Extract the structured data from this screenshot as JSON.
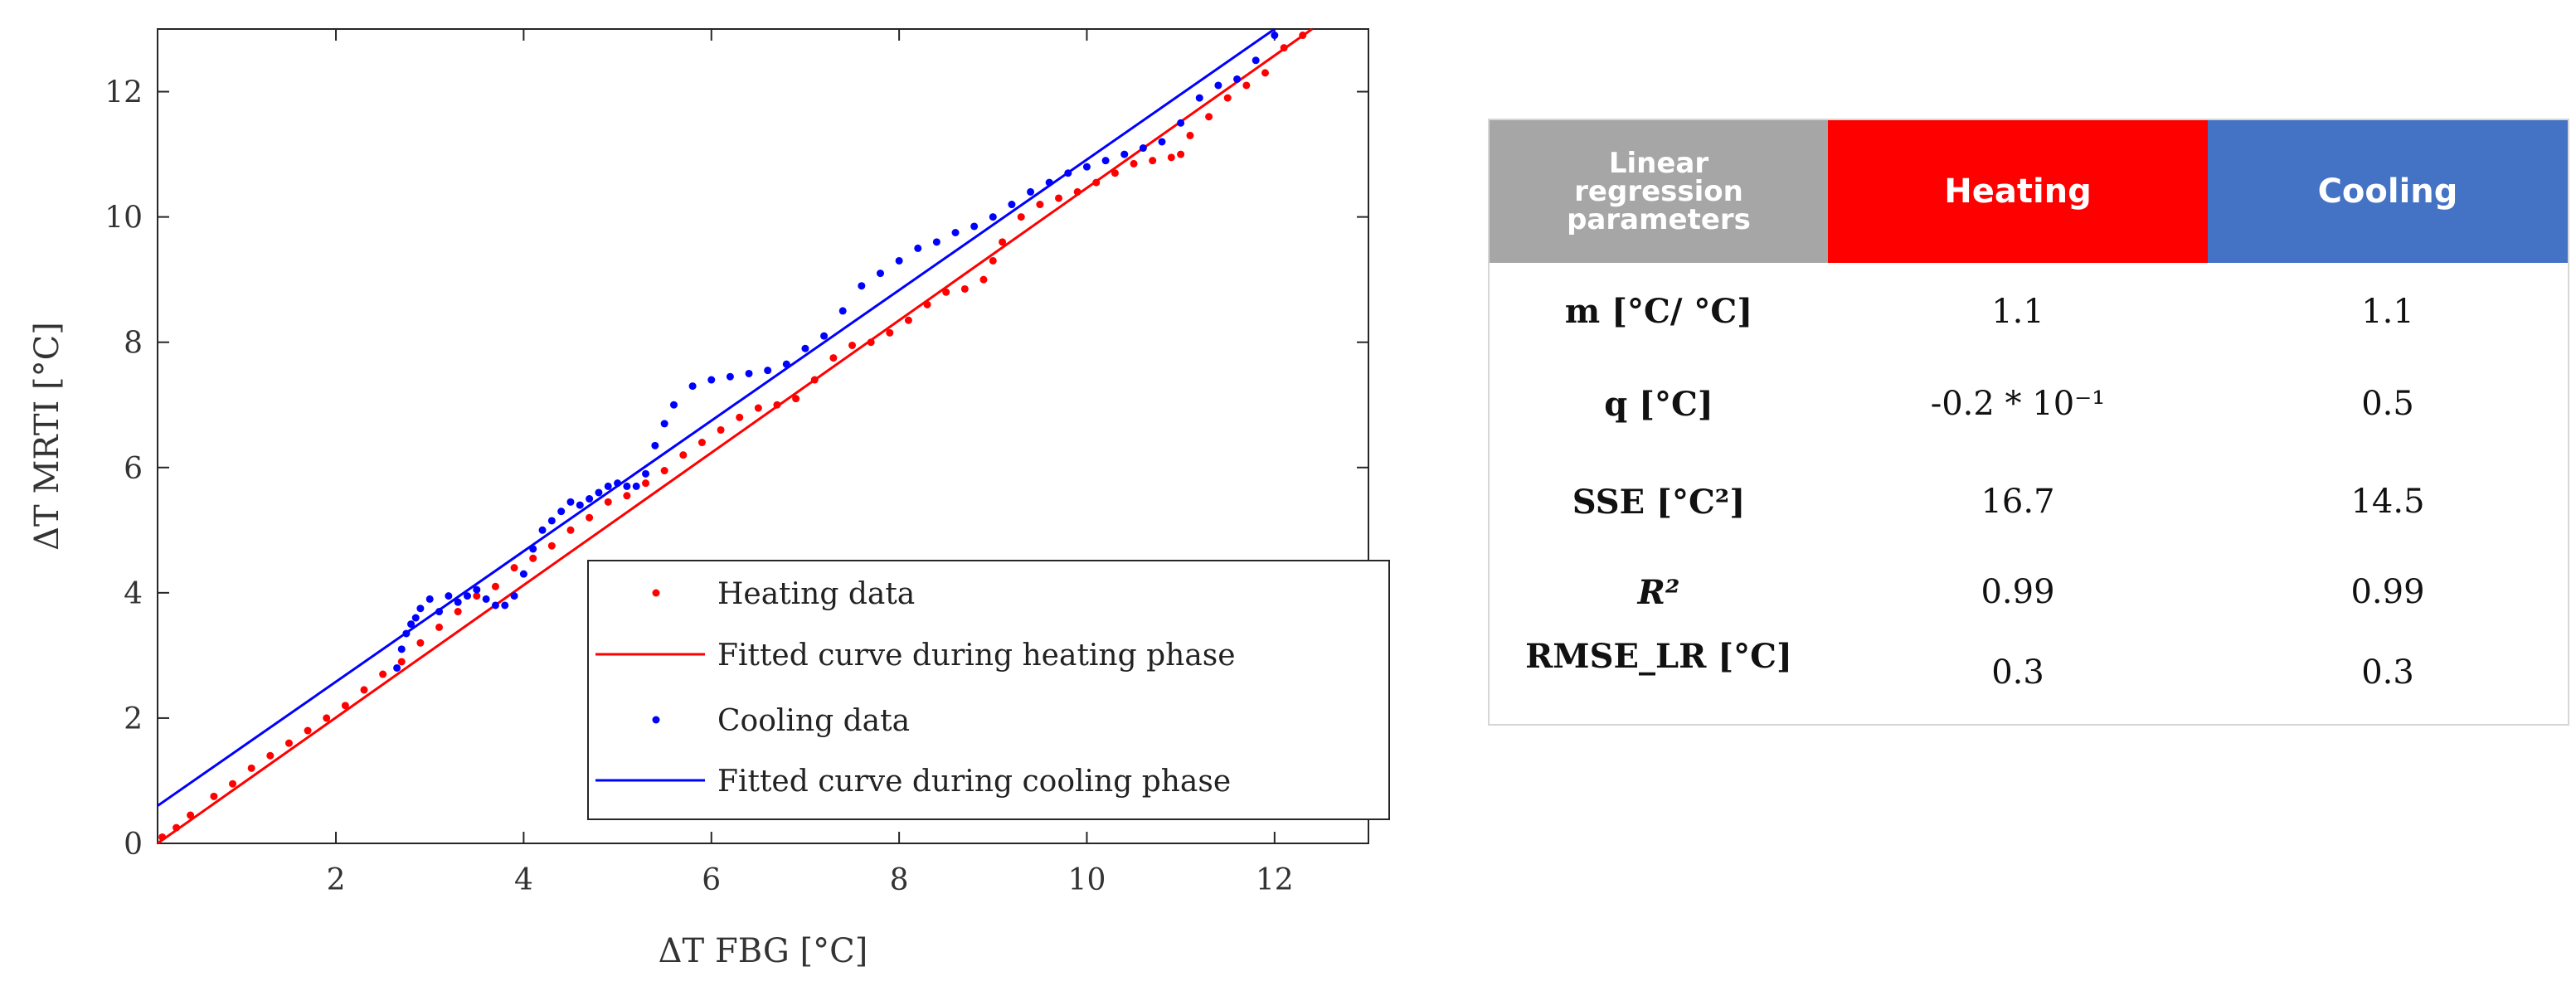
{
  "chart_data": {
    "type": "scatter",
    "xlabel": "ΔT FBG [°C]",
    "ylabel": "ΔT MRTI [°C]",
    "xlim": [
      0.1,
      13
    ],
    "ylim": [
      0,
      13
    ],
    "xticks": [
      2,
      4,
      6,
      8,
      10,
      12
    ],
    "yticks": [
      0,
      2,
      4,
      6,
      8,
      10,
      12
    ],
    "legend_position": "bottom-right",
    "legend": [
      "Heating data",
      "Fitted curve during heating phase",
      "Cooling data",
      "Fitted curve during cooling phase"
    ],
    "series": [
      {
        "name": "Heating data",
        "kind": "points",
        "color": "#ff0000",
        "x": [
          0.15,
          0.3,
          0.45,
          0.7,
          0.9,
          1.1,
          1.3,
          1.5,
          1.7,
          1.9,
          2.1,
          2.3,
          2.5,
          2.7,
          2.9,
          3.1,
          3.3,
          3.5,
          3.7,
          3.9,
          4.1,
          4.3,
          4.5,
          4.7,
          4.9,
          5.1,
          5.3,
          5.5,
          5.7,
          5.9,
          6.1,
          6.3,
          6.5,
          6.7,
          6.9,
          7.1,
          7.3,
          7.5,
          7.7,
          7.9,
          8.1,
          8.3,
          8.5,
          8.7,
          8.9,
          9.0,
          9.1,
          9.3,
          9.5,
          9.7,
          9.9,
          10.1,
          10.3,
          10.5,
          10.7,
          10.9,
          11.0,
          11.1,
          11.3,
          11.5,
          11.7,
          11.9,
          12.1,
          12.3
        ],
        "y": [
          0.1,
          0.25,
          0.45,
          0.75,
          0.95,
          1.2,
          1.4,
          1.6,
          1.8,
          2.0,
          2.2,
          2.45,
          2.7,
          2.9,
          3.2,
          3.45,
          3.7,
          3.95,
          4.1,
          4.4,
          4.55,
          4.75,
          5.0,
          5.2,
          5.45,
          5.55,
          5.75,
          5.95,
          6.2,
          6.4,
          6.6,
          6.8,
          6.95,
          7.0,
          7.1,
          7.4,
          7.75,
          7.95,
          8.0,
          8.15,
          8.35,
          8.6,
          8.8,
          8.85,
          9.0,
          9.3,
          9.6,
          10.0,
          10.2,
          10.3,
          10.4,
          10.55,
          10.7,
          10.85,
          10.9,
          10.95,
          11.0,
          11.3,
          11.6,
          11.9,
          12.1,
          12.3,
          12.7,
          12.9
        ]
      },
      {
        "name": "Cooling data",
        "kind": "points",
        "color": "#0000ff",
        "x": [
          2.65,
          2.7,
          2.75,
          2.8,
          2.85,
          2.9,
          3.0,
          3.1,
          3.2,
          3.3,
          3.4,
          3.5,
          3.6,
          3.7,
          3.8,
          3.9,
          4.0,
          4.1,
          4.2,
          4.3,
          4.4,
          4.5,
          4.6,
          4.7,
          4.8,
          4.9,
          5.0,
          5.1,
          5.2,
          5.3,
          5.4,
          5.5,
          5.6,
          5.8,
          6.0,
          6.2,
          6.4,
          6.6,
          6.8,
          7.0,
          7.2,
          7.4,
          7.6,
          7.8,
          8.0,
          8.2,
          8.4,
          8.6,
          8.8,
          9.0,
          9.2,
          9.4,
          9.6,
          9.8,
          10.0,
          10.2,
          10.4,
          10.6,
          10.8,
          11.0,
          11.2,
          11.4,
          11.6,
          11.8,
          12.0
        ],
        "y": [
          2.8,
          3.1,
          3.35,
          3.5,
          3.6,
          3.75,
          3.9,
          3.7,
          3.95,
          3.85,
          3.95,
          4.05,
          3.9,
          3.8,
          3.8,
          3.95,
          4.3,
          4.7,
          5.0,
          5.15,
          5.3,
          5.45,
          5.4,
          5.5,
          5.6,
          5.7,
          5.75,
          5.7,
          5.7,
          5.9,
          6.35,
          6.7,
          7.0,
          7.3,
          7.4,
          7.45,
          7.5,
          7.55,
          7.65,
          7.9,
          8.1,
          8.5,
          8.9,
          9.1,
          9.3,
          9.5,
          9.6,
          9.75,
          9.85,
          10.0,
          10.2,
          10.4,
          10.55,
          10.7,
          10.8,
          10.9,
          11.0,
          11.1,
          11.2,
          11.5,
          11.9,
          12.1,
          12.2,
          12.5,
          12.9
        ]
      },
      {
        "name": "Fitted curve during heating phase",
        "kind": "line",
        "color": "#ff0000",
        "x": [
          0.1,
          12.4
        ],
        "y": [
          0.0,
          13.0
        ]
      },
      {
        "name": "Fitted curve during cooling phase",
        "kind": "line",
        "color": "#0000ff",
        "x": [
          0.1,
          12.0
        ],
        "y": [
          0.6,
          13.0
        ]
      }
    ]
  },
  "table": {
    "header": {
      "param_lines": [
        "Linear",
        "regression",
        "parameters"
      ],
      "heating": "Heating",
      "cooling": "Cooling"
    },
    "rows": [
      {
        "param": "m [°C/ °C]",
        "heating": "1.1",
        "cooling": "1.1"
      },
      {
        "param": "q [°C]",
        "heating": "-0.2 * 10⁻¹",
        "cooling": "0.5"
      },
      {
        "param": "SSE [°C²]",
        "heating": "16.7",
        "cooling": "14.5"
      },
      {
        "param": "R²",
        "heating": "0.99",
        "cooling": "0.99"
      },
      {
        "param": "RMSE_LR [°C]",
        "heating": "0.3",
        "cooling": "0.3"
      }
    ]
  }
}
